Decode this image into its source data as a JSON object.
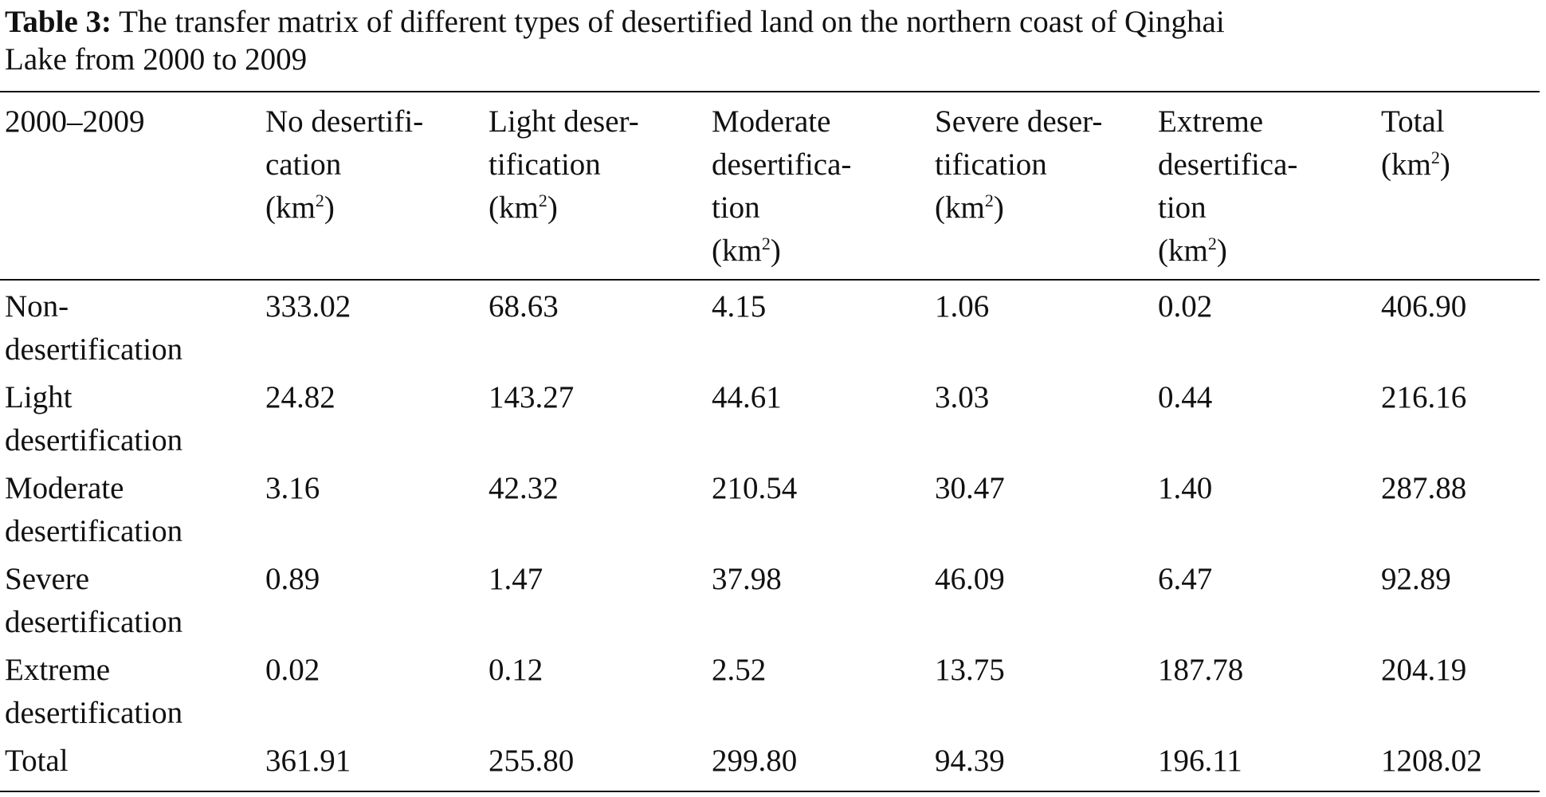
{
  "caption": {
    "label": "Table 3:",
    "line1": "The transfer matrix of different types of desertified land on the northern coast of Qinghai",
    "line2": "Lake from 2000 to 2009"
  },
  "table": {
    "stub_header": "2000–2009",
    "columns": [
      {
        "lines": [
          "No desertifi-",
          "cation"
        ],
        "unit_pre": "(km",
        "unit_sup": "2",
        "unit_post": ")"
      },
      {
        "lines": [
          "Light deser-",
          "tification"
        ],
        "unit_pre": "(km",
        "unit_sup": "2",
        "unit_post": ")"
      },
      {
        "lines": [
          "Moderate",
          "desertifica-",
          "tion"
        ],
        "unit_pre": "(km",
        "unit_sup": "2",
        "unit_post": ")"
      },
      {
        "lines": [
          "Severe deser-",
          "tification"
        ],
        "unit_pre": "(km",
        "unit_sup": "2",
        "unit_post": ")"
      },
      {
        "lines": [
          "Extreme",
          "desertifica-",
          "tion"
        ],
        "unit_pre": "(km",
        "unit_sup": "2",
        "unit_post": ")"
      },
      {
        "lines": [
          "Total"
        ],
        "unit_pre": "(km",
        "unit_sup": "2",
        "unit_post": ")"
      }
    ],
    "rows": [
      {
        "label": [
          "Non-",
          "desertification"
        ],
        "values": [
          "333.02",
          "68.63",
          "4.15",
          "1.06",
          "0.02",
          "406.90"
        ]
      },
      {
        "label": [
          "Light",
          "desertification"
        ],
        "values": [
          "24.82",
          "143.27",
          "44.61",
          "3.03",
          "0.44",
          "216.16"
        ]
      },
      {
        "label": [
          "Moderate",
          "desertification"
        ],
        "values": [
          "3.16",
          "42.32",
          "210.54",
          "30.47",
          "1.40",
          "287.88"
        ]
      },
      {
        "label": [
          "Severe",
          "desertification"
        ],
        "values": [
          "0.89",
          "1.47",
          "37.98",
          "46.09",
          "6.47",
          "92.89"
        ]
      },
      {
        "label": [
          "Extreme",
          "desertification"
        ],
        "values": [
          "0.02",
          "0.12",
          "2.52",
          "13.75",
          "187.78",
          "204.19"
        ]
      },
      {
        "label": [
          "Total"
        ],
        "values": [
          "361.91",
          "255.80",
          "299.80",
          "94.39",
          "196.11",
          "1208.02"
        ]
      }
    ]
  }
}
